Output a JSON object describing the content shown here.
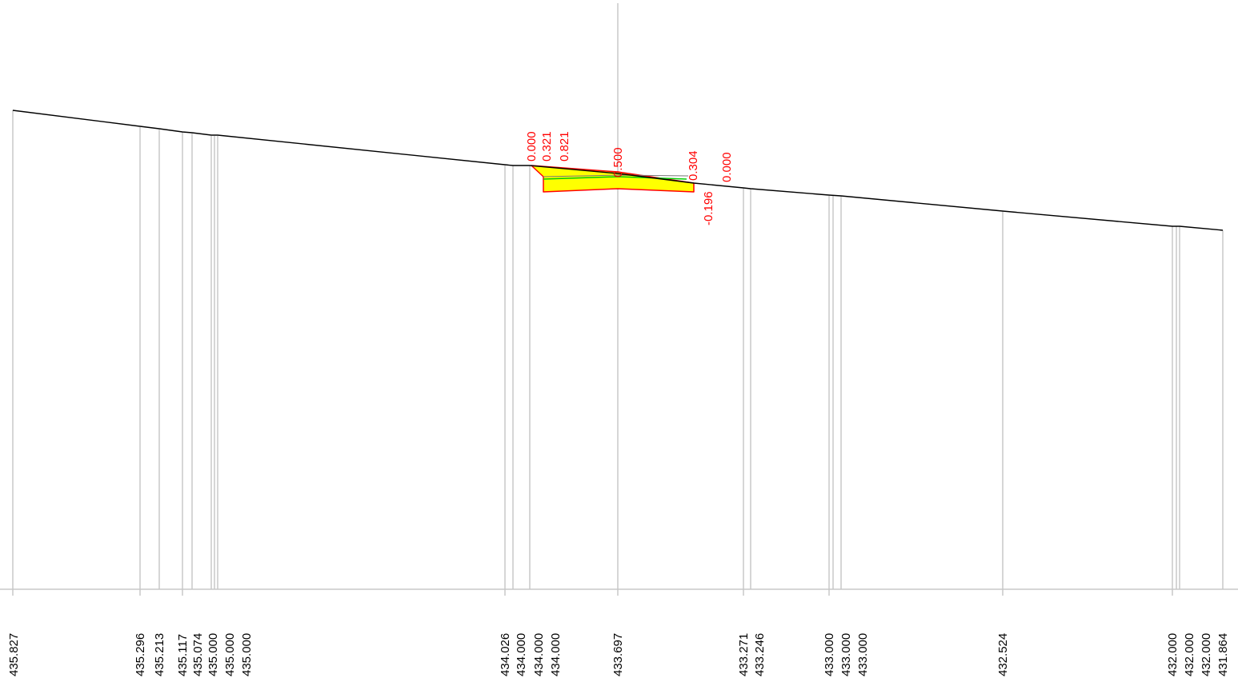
{
  "profile": {
    "stations": [
      {
        "elev": "435.827"
      },
      {
        "elev": "435.296"
      },
      {
        "elev": "435.213"
      },
      {
        "elev": "435.117"
      },
      {
        "elev": "435.074"
      },
      {
        "elev": "435.000"
      },
      {
        "elev": "435.000"
      },
      {
        "elev": "435.000"
      },
      {
        "elev": "434.026"
      },
      {
        "elev": "434.000"
      },
      {
        "elev": "434.000"
      },
      {
        "elev": "434.000"
      },
      {
        "elev": "433.697"
      },
      {
        "elev": "433.271"
      },
      {
        "elev": "433.246"
      },
      {
        "elev": "433.000"
      },
      {
        "elev": "433.000"
      },
      {
        "elev": "433.000"
      },
      {
        "elev": "432.524"
      },
      {
        "elev": "432.000"
      },
      {
        "elev": "432.000"
      },
      {
        "elev": "432.000"
      },
      {
        "elev": "431.864"
      }
    ],
    "section_labels": [
      "0.000",
      "0.321",
      "0.821",
      "0.500",
      "0.304",
      "0.000",
      "-0.196"
    ],
    "colors": {
      "ground_line": "#000000",
      "grid_line": "#c8c8c8",
      "fill": "#ffff00",
      "outline": "#ff0000",
      "label": "#ff0000",
      "design_line": "#00cc00"
    }
  }
}
